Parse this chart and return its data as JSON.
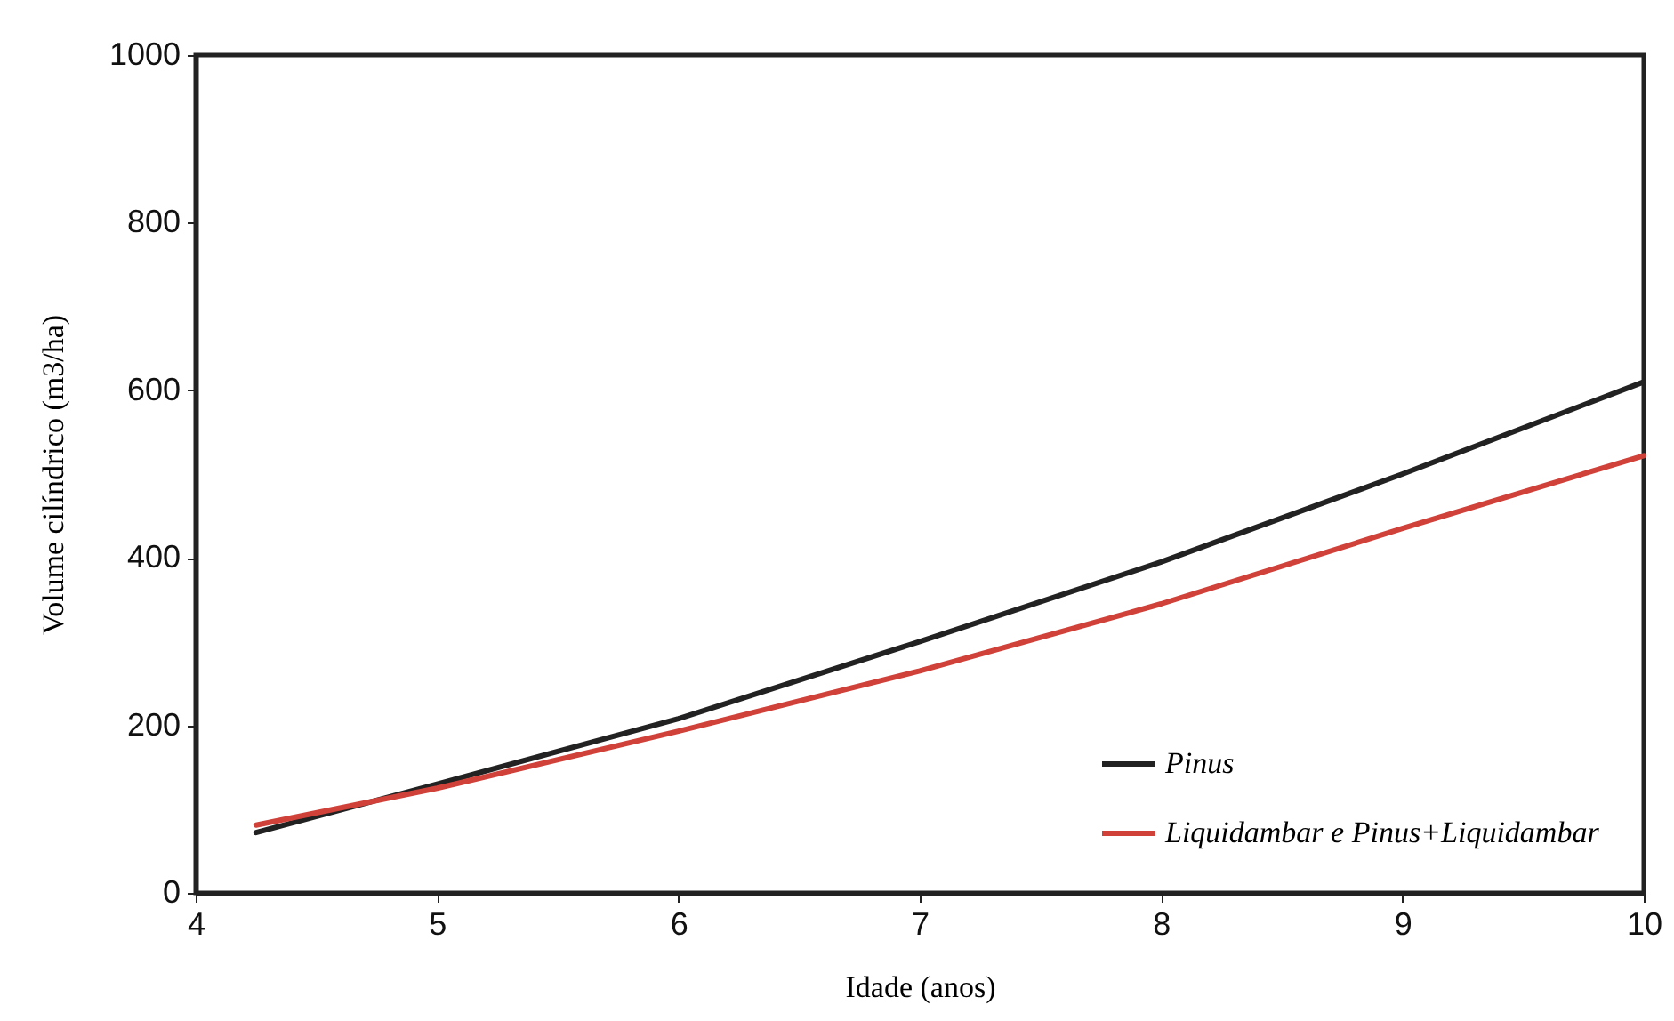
{
  "chart_data": {
    "type": "line",
    "xlabel": "Idade (anos)",
    "ylabel": "Volume cilíndrico (m3/ha)",
    "xlim": [
      4,
      10
    ],
    "xticks": [
      4,
      5,
      6,
      7,
      8,
      9,
      10
    ],
    "ylim": [
      0,
      1000
    ],
    "yticks": [
      0,
      200,
      400,
      600,
      800,
      1000
    ],
    "legend": "bottom right",
    "grid": false,
    "marker": "none",
    "line_style": "solid",
    "series": [
      {
        "name": "Pinus",
        "color": "#222222",
        "x": [
          4.25,
          5,
          6,
          7,
          8,
          9,
          10
        ],
        "values": [
          72,
          130,
          208,
          300,
          395,
          500,
          610
        ]
      },
      {
        "name": "Liquidambar e Pinus+Liquidambar",
        "color": "#d0413a",
        "x": [
          4.25,
          5,
          6,
          7,
          8,
          9,
          10
        ],
        "values": [
          81,
          125,
          193,
          265,
          345,
          435,
          522
        ]
      }
    ]
  }
}
